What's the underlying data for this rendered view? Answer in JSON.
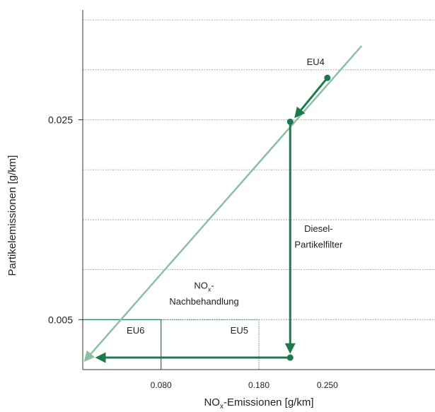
{
  "chart_data": {
    "type": "line",
    "title": "",
    "xlabel": "NO",
    "xlabel_sub": "x",
    "xlabel_rest": "-Emissionen [g/km]",
    "ylabel": "Partikelemissionen [g/km]",
    "xlim": [
      0,
      0.36
    ],
    "ylim": [
      0,
      0.036
    ],
    "grid": true,
    "x_ticks": [
      {
        "value": 0.08,
        "label": "0.080"
      },
      {
        "value": 0.18,
        "label": "0.180"
      },
      {
        "value": 0.25,
        "label": "0.250"
      }
    ],
    "y_ticks": [
      {
        "value": 0.025,
        "label": "0.025"
      },
      {
        "value": 0.005,
        "label": "0.005"
      }
    ],
    "trend_line": {
      "x": [
        0.004,
        0.285
      ],
      "y": [
        0.0011,
        0.0324
      ]
    },
    "points": [
      {
        "name": "EU4",
        "x": 0.25,
        "y": 0.0292
      },
      {
        "name": "filter-start",
        "x": 0.212,
        "y": 0.0248
      },
      {
        "name": "treatment-start",
        "x": 0.212,
        "y": 0.0012
      }
    ],
    "arrows": [
      {
        "x1": 0.25,
        "y1": 0.0292,
        "x2": 0.219,
        "y2": 0.0255
      },
      {
        "x1": 0.212,
        "y1": 0.0248,
        "x2": 0.212,
        "y2": 0.002
      },
      {
        "x1": 0.212,
        "y1": 0.0012,
        "x2": 0.017,
        "y2": 0.0012
      }
    ],
    "limit_boxes": [
      {
        "name": "EU6",
        "x": 0.08,
        "y": 0.005,
        "style": "solid"
      },
      {
        "name": "EU5",
        "x": 0.18,
        "y": 0.005,
        "style": "dotted"
      }
    ],
    "annotations": [
      {
        "key": "eu4",
        "text": "EU4",
        "x": 0.238,
        "y": 0.0305
      },
      {
        "key": "eu6",
        "text": "EU6",
        "x": 0.054,
        "y": 0.0036
      },
      {
        "key": "eu5",
        "text": "EU5",
        "x": 0.16,
        "y": 0.0036
      },
      {
        "key": "diesel1",
        "text": "Diesel-",
        "x": 0.241,
        "y": 0.0138
      },
      {
        "key": "diesel2",
        "text": "Partikelfilter",
        "x": 0.241,
        "y": 0.0122
      },
      {
        "key": "nox1",
        "text": "NO",
        "sub": "x",
        "rest": "-",
        "x": 0.124,
        "y": 0.0081
      },
      {
        "key": "nox2",
        "text": "Nachbehandlung",
        "x": 0.124,
        "y": 0.0065
      }
    ],
    "colors": {
      "trend": "#8dbfa6",
      "path": "#1c7a4c",
      "limit": "#1c7a4c",
      "grid": "#9a9a9a",
      "axis": "#333333"
    }
  }
}
